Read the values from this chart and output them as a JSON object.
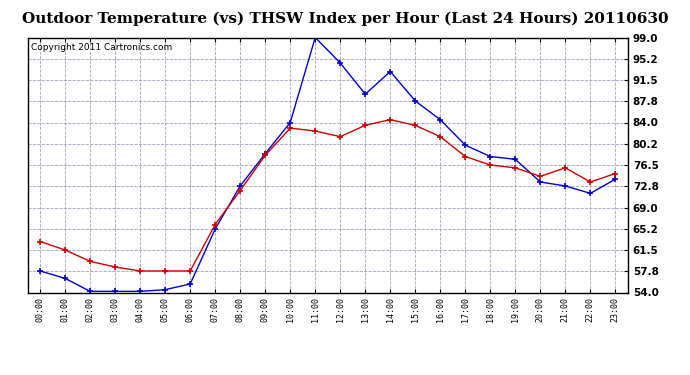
{
  "title": "Outdoor Temperature (vs) THSW Index per Hour (Last 24 Hours) 20110630",
  "copyright": "Copyright 2011 Cartronics.com",
  "x_labels": [
    "00:00",
    "01:00",
    "02:00",
    "03:00",
    "04:00",
    "05:00",
    "06:00",
    "07:00",
    "08:00",
    "09:00",
    "10:00",
    "11:00",
    "12:00",
    "13:00",
    "14:00",
    "15:00",
    "16:00",
    "17:00",
    "18:00",
    "19:00",
    "20:00",
    "21:00",
    "22:00",
    "23:00"
  ],
  "y_ticks": [
    54.0,
    57.8,
    61.5,
    65.2,
    69.0,
    72.8,
    76.5,
    80.2,
    84.0,
    87.8,
    91.5,
    95.2,
    99.0
  ],
  "y_min": 54.0,
  "y_max": 99.0,
  "blue_data": [
    57.8,
    56.5,
    54.2,
    54.2,
    54.2,
    54.5,
    55.5,
    65.2,
    72.8,
    78.5,
    84.0,
    99.0,
    94.5,
    89.0,
    93.0,
    87.8,
    84.5,
    80.0,
    78.0,
    77.5,
    73.5,
    72.8,
    71.5,
    74.0
  ],
  "red_data": [
    63.0,
    61.5,
    59.5,
    58.5,
    57.8,
    57.8,
    57.8,
    66.0,
    72.0,
    78.2,
    83.0,
    82.5,
    81.5,
    83.5,
    84.5,
    83.5,
    81.5,
    78.0,
    76.5,
    76.0,
    74.5,
    76.0,
    73.5,
    75.0
  ],
  "blue_color": "#0000cc",
  "red_color": "#cc0000",
  "bg_color": "#ffffff",
  "plot_bg": "#ffffff",
  "grid_color": "#8888aa",
  "title_fontsize": 11,
  "copyright_fontsize": 6.5
}
